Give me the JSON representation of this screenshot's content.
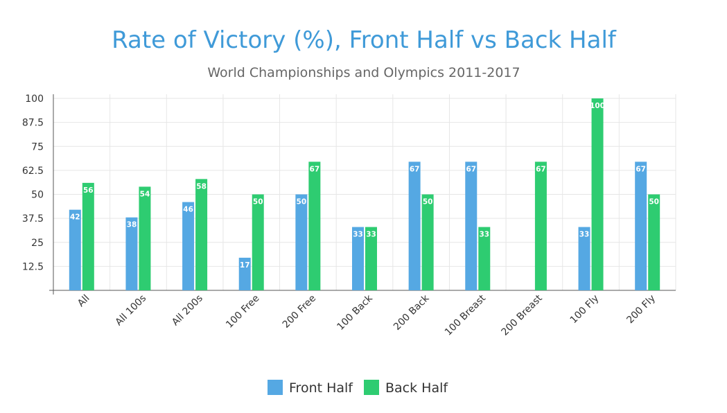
{
  "chart_data": {
    "type": "bar",
    "title": "Rate of Victory (%), Front Half vs Back Half",
    "subtitle": "World Championships and Olympics 2011-2017",
    "xlabel": "",
    "ylabel": "",
    "ylim": [
      0,
      100
    ],
    "y_ticks": [
      12.5,
      25,
      37.5,
      50,
      62.5,
      75,
      87.5,
      100
    ],
    "y_tick_labels": [
      "12.5",
      "25",
      "37.5",
      "50",
      "62.5",
      "75",
      "87.5",
      "100"
    ],
    "grid": true,
    "legend_position": "bottom",
    "categories": [
      "All",
      "All 100s",
      "All 200s",
      "100 Free",
      "200 Free",
      "100 Back",
      "200 Back",
      "100 Breast",
      "200 Breast",
      "100 Fly",
      "200 Fly"
    ],
    "series": [
      {
        "name": "Front Half",
        "color": "#55a8e3",
        "values": [
          42,
          38,
          46,
          17,
          50,
          33,
          67,
          67,
          0,
          33,
          67
        ],
        "labels": [
          "42",
          "38",
          "46",
          "17",
          "50",
          "33",
          "67",
          "67",
          "",
          "33",
          "67"
        ]
      },
      {
        "name": "Back Half",
        "color": "#2ecc71",
        "values": [
          56,
          54,
          58,
          50,
          67,
          33,
          50,
          33,
          67,
          100,
          50
        ],
        "labels": [
          "56",
          "54",
          "58",
          "50",
          "67",
          "33",
          "50",
          "33",
          "67",
          "100",
          "50"
        ]
      }
    ]
  }
}
